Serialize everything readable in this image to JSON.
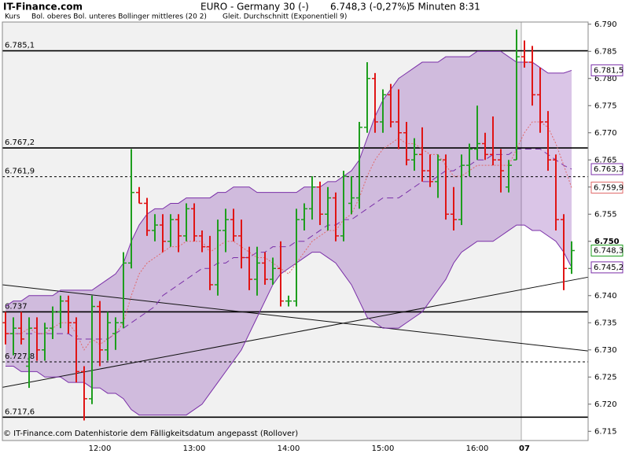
{
  "chart_data": {
    "type": "ohlc",
    "site": "IT-Finance.com",
    "title": "EURO - Germany 30 (-)",
    "quote": "6.748,3 (-0,27%)",
    "interval": "5 Minuten  8:31",
    "footnote": "© IT-Finance.com  Datenhistorie dem Fälligkeitsdatum angepasst (Rollover)",
    "price_name": "Kurs",
    "up_color": "#1e9e1e",
    "down_color": "#e01515",
    "categories": [
      null,
      null,
      null,
      null,
      null,
      null,
      null,
      null,
      null,
      null,
      null,
      null,
      "12:00",
      null,
      null,
      null,
      null,
      null,
      null,
      null,
      null,
      null,
      null,
      null,
      "13:00",
      null,
      null,
      null,
      null,
      null,
      null,
      null,
      null,
      null,
      null,
      null,
      "14:00",
      null,
      null,
      null,
      null,
      null,
      null,
      null,
      null,
      null,
      null,
      null,
      "15:00",
      null,
      null,
      null,
      null,
      null,
      null,
      null,
      null,
      null,
      null,
      null,
      "16:00",
      null,
      null,
      null,
      null,
      null,
      "07",
      null,
      null,
      null,
      null,
      null,
      null
    ],
    "open": [
      6735,
      6733,
      6734,
      6727,
      6734,
      6730,
      6734,
      6737,
      6739,
      6735,
      6726,
      6721,
      6738,
      6730,
      6733,
      6735,
      6746,
      6759,
      6757,
      6752,
      6753,
      6750,
      6754,
      6751,
      6756,
      6751,
      6749,
      6742,
      6752,
      6754,
      6751,
      6747,
      6743,
      6746,
      6743,
      6745,
      6739,
      6739,
      6754,
      6756,
      6760,
      6755,
      6758,
      6751,
      6757,
      6758,
      6771,
      6780,
      6772,
      6777,
      6772,
      6770,
      6765,
      6766,
      6763,
      6761,
      6765,
      6755,
      6754,
      6764,
      6767,
      6768,
      6766,
      6765,
      6760,
      6765,
      6784,
      6783,
      6777,
      6772,
      6765,
      6754,
      6745
    ],
    "high": [
      6737,
      6736,
      6737,
      6736,
      6736,
      6735,
      6738,
      6740,
      6740,
      6736,
      6727,
      6740,
      6739,
      6737,
      6736,
      6748,
      6767,
      6760,
      6758,
      6755,
      6755,
      6755,
      6755,
      6757,
      6757,
      6752,
      6751,
      6754,
      6756,
      6756,
      6754,
      6749,
      6749,
      6748,
      6747,
      6750,
      6740,
      6756,
      6757,
      6762,
      6761,
      6760,
      6759,
      6763,
      6762,
      6772,
      6783,
      6781,
      6778,
      6779,
      6778,
      6772,
      6769,
      6771,
      6766,
      6766,
      6766,
      6760,
      6766,
      6768,
      6775,
      6770,
      6773,
      6767,
      6765,
      6789,
      6787,
      6786,
      6782,
      6774,
      6766,
      6755,
      6750
    ],
    "low": [
      6731,
      6729,
      6731,
      6723,
      6728,
      6728,
      6732,
      6734,
      6733,
      6724,
      6717,
      6720,
      6727,
      6728,
      6730,
      6734,
      6745,
      6757,
      6751,
      6750,
      6748,
      6749,
      6748,
      6750,
      6750,
      6748,
      6741,
      6740,
      6748,
      6750,
      6745,
      6741,
      6740,
      6742,
      6742,
      6738,
      6738,
      6738,
      6752,
      6754,
      6753,
      6752,
      6750,
      6750,
      6755,
      6756,
      6770,
      6770,
      6770,
      6771,
      6767,
      6764,
      6763,
      6761,
      6760,
      6758,
      6754,
      6752,
      6753,
      6762,
      6765,
      6765,
      6764,
      6759,
      6759,
      6765,
      6782,
      6775,
      6770,
      6763,
      6752,
      6741,
      6744
    ],
    "close": [
      6733,
      6734,
      6732,
      6734,
      6730,
      6734,
      6737,
      6739,
      6735,
      6726,
      6721,
      6738,
      6730,
      6735,
      6735,
      6746,
      6759,
      6757,
      6752,
      6753,
      6750,
      6754,
      6751,
      6756,
      6751,
      6749,
      6742,
      6752,
      6754,
      6751,
      6747,
      6743,
      6746,
      6743,
      6745,
      6739,
      6739,
      6754,
      6756,
      6760,
      6755,
      6758,
      6751,
      6762,
      6758,
      6771,
      6780,
      6772,
      6777,
      6772,
      6770,
      6765,
      6766,
      6763,
      6761,
      6765,
      6755,
      6754,
      6764,
      6767,
      6768,
      6766,
      6765,
      6763,
      6764,
      6784,
      6783,
      6777,
      6772,
      6765,
      6754,
      6745,
      6748.3
    ],
    "close_end_label": "6.748,3",
    "bollinger": {
      "name": "Bol. oberes Bol. unteres Bollinger mittleres (20 2)",
      "color": "#7a2fa8",
      "upper": [
        6738,
        6739,
        6739,
        6740,
        6740,
        6740,
        6740,
        6741,
        6741,
        6741,
        6741,
        6741,
        6742,
        6743,
        6744,
        6746,
        6750,
        6753,
        6755,
        6756,
        6756,
        6757,
        6757,
        6758,
        6758,
        6758,
        6758,
        6759,
        6759,
        6760,
        6760,
        6760,
        6759,
        6759,
        6759,
        6759,
        6759,
        6759,
        6760,
        6760,
        6760,
        6761,
        6761,
        6762,
        6763,
        6765,
        6769,
        6773,
        6776,
        6778,
        6780,
        6781,
        6782,
        6783,
        6783,
        6783,
        6784,
        6784,
        6784,
        6784,
        6785,
        6785,
        6785,
        6785,
        6784,
        6783,
        6783,
        6783,
        6782,
        6781,
        6781,
        6781,
        6781.5
      ],
      "upper_end_label": "6.781,5",
      "middle": [
        6733,
        6733,
        6733,
        6733,
        6733,
        6733,
        6733,
        6733,
        6733,
        6732,
        6732,
        6732,
        6732,
        6732,
        6733,
        6734,
        6735,
        6736,
        6737,
        6738,
        6740,
        6741,
        6742,
        6743,
        6744,
        6745,
        6745,
        6746,
        6746,
        6747,
        6747,
        6747,
        6748,
        6748,
        6749,
        6749,
        6749,
        6750,
        6750,
        6751,
        6752,
        6753,
        6753,
        6754,
        6754,
        6755,
        6756,
        6757,
        6758,
        6758,
        6758,
        6759,
        6760,
        6761,
        6761,
        6762,
        6763,
        6763,
        6764,
        6764,
        6765,
        6765,
        6766,
        6766,
        6766,
        6767,
        6767,
        6767,
        6767,
        6766,
        6765,
        6764,
        6763.3
      ],
      "middle_end_label": "6.763,3",
      "lower": [
        6727,
        6727,
        6726,
        6726,
        6726,
        6725,
        6725,
        6725,
        6724,
        6724,
        6724,
        6723,
        6723,
        6722,
        6722,
        6721,
        6719,
        6718,
        6718,
        6718,
        6718,
        6718,
        6718,
        6718,
        6719,
        6720,
        6722,
        6724,
        6726,
        6728,
        6730,
        6733,
        6736,
        6739,
        6742,
        6744,
        6745,
        6746,
        6747,
        6748,
        6748,
        6747,
        6746,
        6744,
        6742,
        6739,
        6736,
        6735,
        6734,
        6734,
        6734,
        6735,
        6736,
        6737,
        6739,
        6741,
        6743,
        6746,
        6748,
        6749,
        6750,
        6750,
        6750,
        6751,
        6752,
        6753,
        6753,
        6752,
        6752,
        6751,
        6750,
        6748,
        6745.2
      ],
      "lower_end_label": "6.745,2"
    },
    "ema": {
      "name": "Gleit. Durchschnitt (Exponentiell 9)",
      "color": "#e06a6a",
      "values": [
        6733,
        6733,
        6733,
        6734,
        6733,
        6733,
        6734,
        6735,
        6735,
        6733,
        6730,
        6732,
        6731,
        6732,
        6733,
        6735,
        6740,
        6744,
        6746,
        6747,
        6748,
        6749,
        6749,
        6750,
        6750,
        6750,
        6748,
        6749,
        6750,
        6750,
        6749,
        6748,
        6747,
        6747,
        6746,
        6745,
        6744,
        6746,
        6748,
        6750,
        6751,
        6752,
        6752,
        6754,
        6755,
        6758,
        6762,
        6765,
        6767,
        6768,
        6769,
        6768,
        6768,
        6767,
        6766,
        6766,
        6764,
        6762,
        6762,
        6763,
        6764,
        6764,
        6764,
        6764,
        6764,
        6767,
        6770,
        6772,
        6772,
        6771,
        6768,
        6764,
        6759.9
      ],
      "end_label": "6.759,9"
    },
    "levels": [
      {
        "value": 6785.1,
        "label": "6.785,1",
        "dashed": false
      },
      {
        "value": 6767.2,
        "label": "6.767,2",
        "dashed": false
      },
      {
        "value": 6761.9,
        "label": "6.761,9",
        "dashed": true
      },
      {
        "value": 6737,
        "label": "6.737",
        "dashed": false
      },
      {
        "value": 6727.8,
        "label": "6.727,8",
        "dashed": true
      },
      {
        "value": 6717.6,
        "label": "6.717,6",
        "dashed": false
      }
    ],
    "trend_lines": [
      {
        "values": [
          6742.0,
          6729.8
        ]
      },
      {
        "values": [
          6723.1,
          6743.4
        ]
      }
    ],
    "ylim": [
      6713.3,
      6790.4
    ],
    "yticks": [
      {
        "value": 6715,
        "label": "6.715"
      },
      {
        "value": 6720,
        "label": "6.720"
      },
      {
        "value": 6725,
        "label": "6.725"
      },
      {
        "value": 6730,
        "label": "6.730"
      },
      {
        "value": 6735,
        "label": "6.735"
      },
      {
        "value": 6740,
        "label": "6.740"
      },
      {
        "value": 6745,
        "label": "6.745"
      },
      {
        "value": 6750,
        "label": "6.750"
      },
      {
        "value": 6755,
        "label": "6.755"
      },
      {
        "value": 6760,
        "label": "6.760"
      },
      {
        "value": 6765,
        "label": "6.765"
      },
      {
        "value": 6770,
        "label": "6.770"
      },
      {
        "value": 6775,
        "label": "6.775"
      },
      {
        "value": 6780,
        "label": "6.780"
      },
      {
        "value": 6785,
        "label": "6.785"
      },
      {
        "value": 6790,
        "label": "6.790"
      }
    ]
  }
}
